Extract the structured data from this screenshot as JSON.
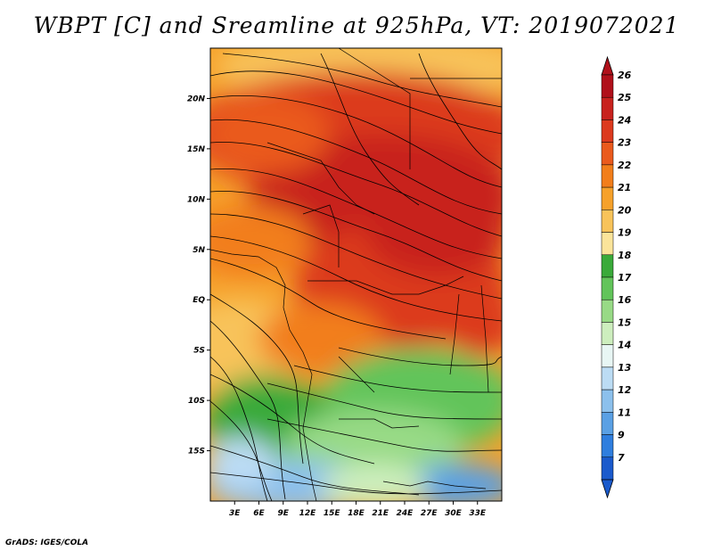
{
  "title": "WBPT [C] and Sreamline at 925hPa, VT: 2019072021",
  "footer": "GrADS: IGES/COLA",
  "map": {
    "lon_range": [
      0,
      36
    ],
    "lat_range": [
      -20,
      25
    ],
    "lon_ticks": [
      "3E",
      "6E",
      "9E",
      "12E",
      "15E",
      "18E",
      "21E",
      "24E",
      "27E",
      "30E",
      "33E"
    ],
    "lat_ticks": [
      "20N",
      "15N",
      "10N",
      "5N",
      "EQ",
      "5S",
      "10S",
      "15S"
    ]
  },
  "colorbar": {
    "labels": [
      "26",
      "25",
      "24",
      "23",
      "22",
      "21",
      "20",
      "19",
      "18",
      "17",
      "16",
      "15",
      "14",
      "13",
      "12",
      "11",
      "9",
      "7"
    ],
    "colors": [
      "#b0101a",
      "#c8221e",
      "#dc3a1e",
      "#ea5a1c",
      "#f27e1a",
      "#f6a12a",
      "#f8c35a",
      "#fbe49a",
      "#3aaa3a",
      "#62c45a",
      "#98da86",
      "#cdeebe",
      "#e8f6f4",
      "#bcdcf4",
      "#8cc0ec",
      "#5aa0e4",
      "#2f7ede",
      "#1a5acc"
    ]
  }
}
